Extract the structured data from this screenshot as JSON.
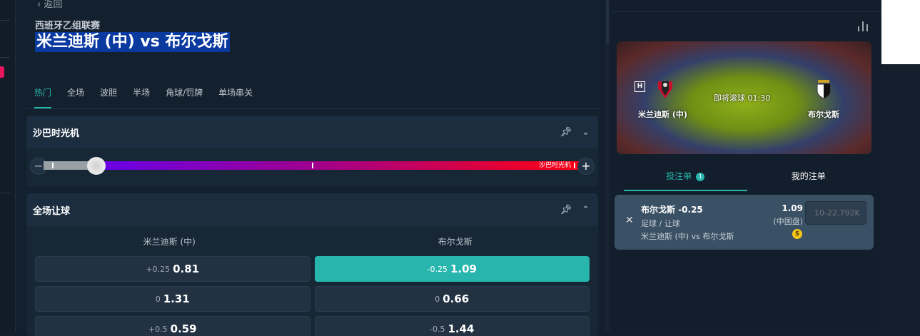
{
  "header": {
    "back": "‹ 返回",
    "league": "西班牙乙组联赛",
    "match_title": "米兰迪斯 (中) vs 布尔戈斯"
  },
  "tabs": [
    {
      "label": "热门",
      "active": true
    },
    {
      "label": "全场"
    },
    {
      "label": "波胆"
    },
    {
      "label": "半场"
    },
    {
      "label": "角球/罚牌"
    },
    {
      "label": "单场串关"
    }
  ],
  "time_machine": {
    "title": "沙巴时光机",
    "end_label": "沙巴时光机",
    "minus": "−",
    "plus": "+"
  },
  "handicap": {
    "title": "全场让球",
    "home": "米兰迪斯 (中)",
    "away": "布尔戈斯",
    "rows": [
      {
        "home_hdp": "+0.25",
        "home_odds": "0.81",
        "away_hdp": "-0.25",
        "away_odds": "1.09",
        "selected": "away"
      },
      {
        "home_hdp": "0",
        "home_odds": "1.31",
        "away_hdp": "0",
        "away_odds": "0.66"
      },
      {
        "home_hdp": "+0.5",
        "home_odds": "0.59",
        "away_hdp": "-0.5",
        "away_odds": "1.44"
      }
    ]
  },
  "hero": {
    "home_badge": "H",
    "home": "米兰迪斯 (中)",
    "away": "布尔戈斯",
    "status": "即将滚球 01:30"
  },
  "betslip_tabs": [
    {
      "label": "投注单",
      "count": "1",
      "active": true
    },
    {
      "label": "我的注单"
    }
  ],
  "slip": {
    "selection": "布尔戈斯 -0.25",
    "market": "足球 / 让球",
    "event": "米兰迪斯 (中) vs 布尔戈斯",
    "odds": "1.09",
    "odds_type": "(中国盘)",
    "stake_placeholder": "10-22.792K",
    "coin": "$"
  },
  "colors": {
    "accent": "#27b5ad",
    "title_highlight": "#0a3aa0"
  }
}
